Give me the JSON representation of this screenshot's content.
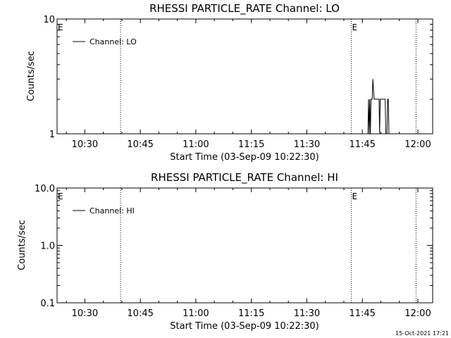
{
  "footer_timestamp": "15-Oct-2021 17:21",
  "chart_data": [
    {
      "type": "line",
      "title": "RHESSI PARTICLE_RATE Channel: LO",
      "xlabel": "Start Time (03-Sep-09 10:22:30)",
      "ylabel": "Counts/sec",
      "yscale": "log",
      "ylim": [
        1,
        10
      ],
      "xlim": [
        "10:22:30",
        "12:04:00"
      ],
      "x_ticks": [
        "10:30",
        "10:45",
        "11:00",
        "11:15",
        "11:30",
        "11:45",
        "12:00"
      ],
      "y_ticks": [
        "1",
        "10"
      ],
      "legend": "top-left",
      "event_markers": [
        {
          "time": "10:39:40",
          "label": "E"
        },
        {
          "time": "11:42:00",
          "label": ""
        },
        {
          "time": "11:59:30",
          "label": ""
        }
      ],
      "corner_labels": [
        {
          "time": "10:22:30",
          "label": "E"
        },
        {
          "time": "11:42:00",
          "label": "E"
        }
      ],
      "series": [
        {
          "name": "Channel: LO",
          "points": [
            [
              "11:46:30",
              1
            ],
            [
              "11:46:40",
              2
            ],
            [
              "11:46:50",
              1
            ],
            [
              "11:47:00",
              2
            ],
            [
              "11:47:10",
              1
            ],
            [
              "11:47:20",
              2
            ],
            [
              "11:47:40",
              2
            ],
            [
              "11:47:50",
              3
            ],
            [
              "11:48:10",
              2
            ],
            [
              "11:48:40",
              2
            ],
            [
              "11:49:30",
              2
            ],
            [
              "11:49:40",
              1
            ],
            [
              "11:49:50",
              2
            ],
            [
              "11:51:10",
              2
            ],
            [
              "11:51:20",
              1
            ],
            [
              "11:51:40",
              1
            ],
            [
              "11:51:50",
              2
            ],
            [
              "11:52:00",
              2
            ],
            [
              "11:52:10",
              1
            ]
          ]
        }
      ]
    },
    {
      "type": "line",
      "title": "RHESSI PARTICLE_RATE Channel: HI",
      "xlabel": "Start Time (03-Sep-09 10:22:30)",
      "ylabel": "Counts/sec",
      "yscale": "log",
      "ylim": [
        0.1,
        10
      ],
      "xlim": [
        "10:22:30",
        "12:04:00"
      ],
      "x_ticks": [
        "10:30",
        "10:45",
        "11:00",
        "11:15",
        "11:30",
        "11:45",
        "12:00"
      ],
      "y_ticks": [
        "0.1",
        "1.0",
        "10.0"
      ],
      "legend": "top-left",
      "event_markers": [
        {
          "time": "10:39:40",
          "label": "E"
        },
        {
          "time": "11:42:00",
          "label": ""
        },
        {
          "time": "11:59:30",
          "label": ""
        }
      ],
      "corner_labels": [
        {
          "time": "10:22:30",
          "label": "E"
        },
        {
          "time": "11:42:00",
          "label": "E"
        }
      ],
      "series": [
        {
          "name": "Channel: HI",
          "points": []
        }
      ]
    }
  ]
}
